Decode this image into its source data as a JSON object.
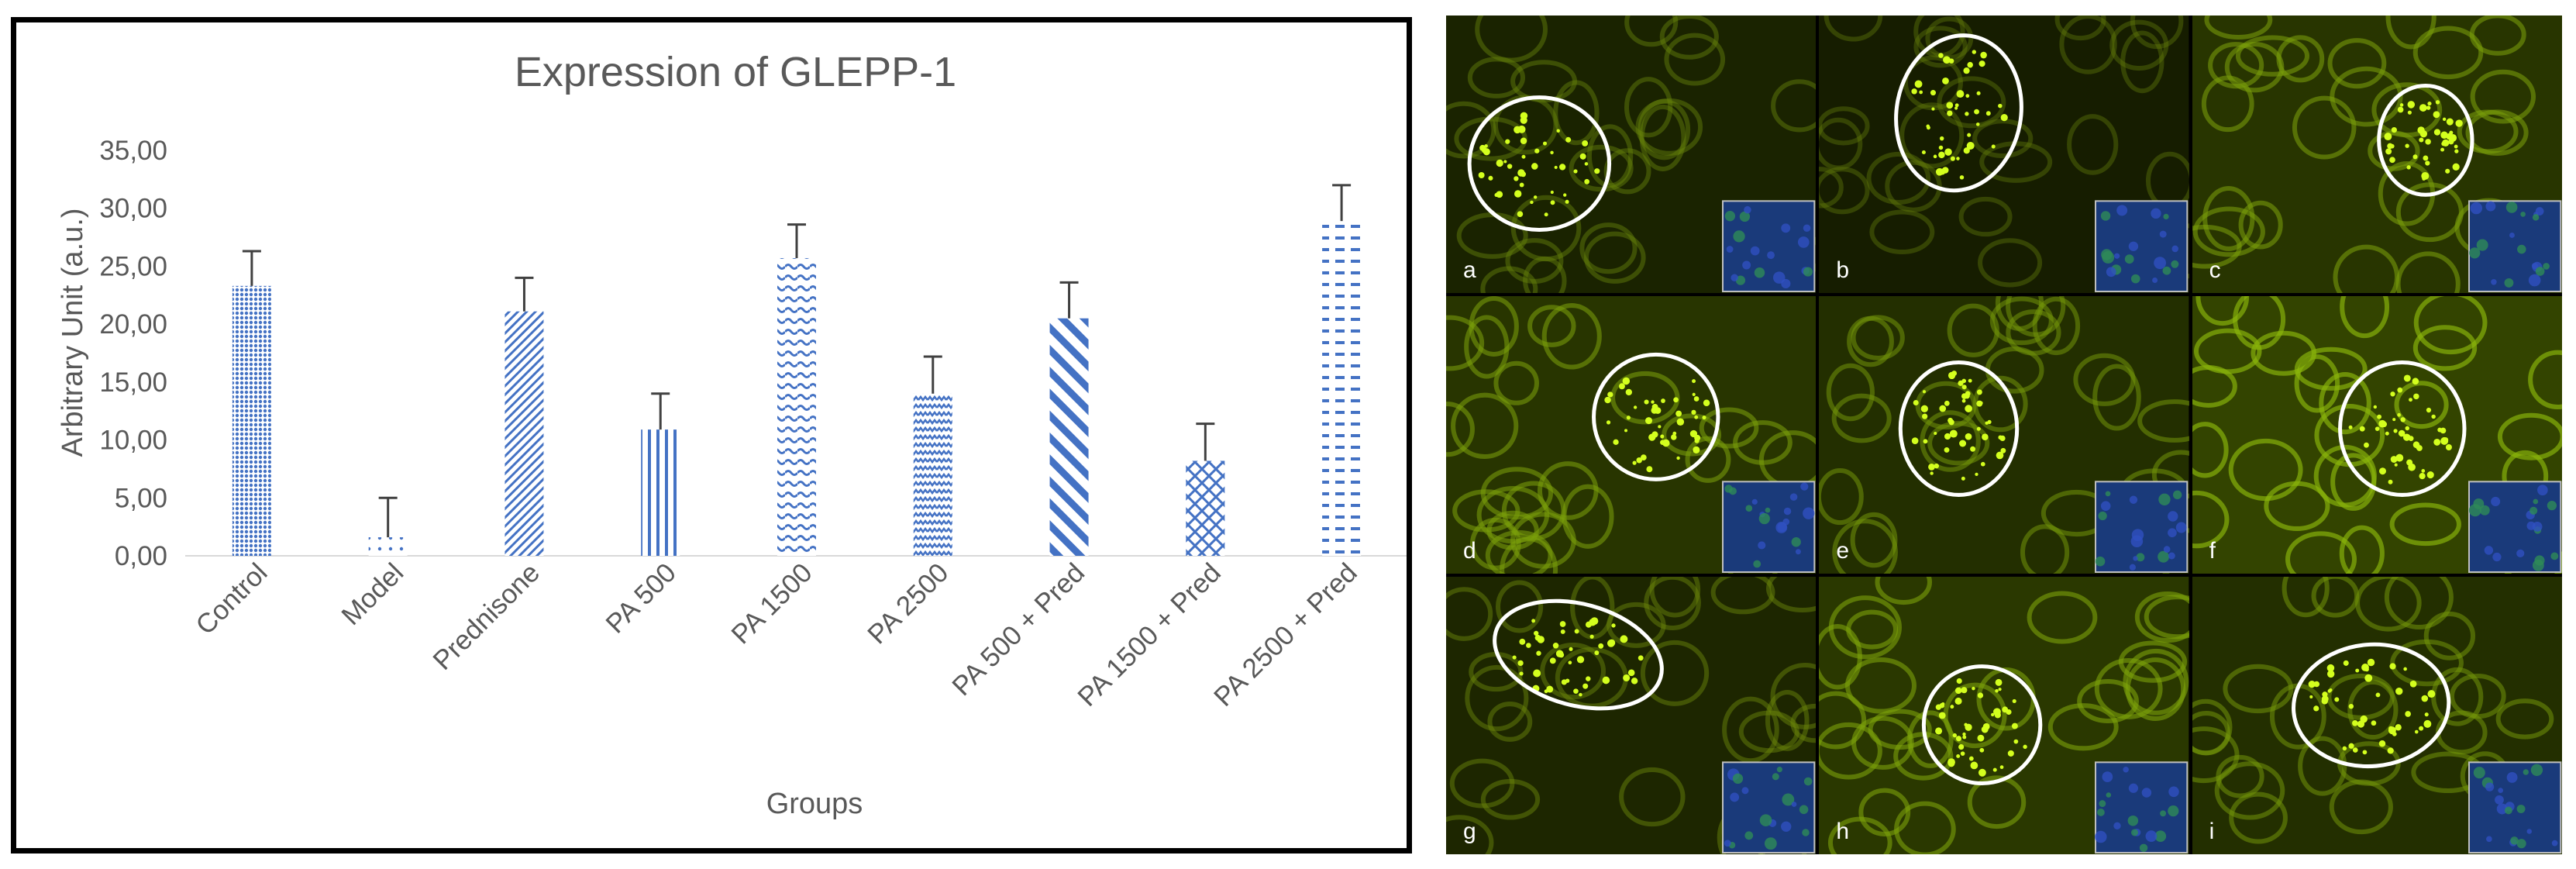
{
  "chart_data": {
    "type": "bar",
    "title": "Expression of GLEPP-1",
    "xlabel": "Groups",
    "ylabel": "Arbitrary Unit (a.u.)",
    "ylim": [
      0,
      35
    ],
    "yticks": [
      "0,00",
      "5,00",
      "10,00",
      "15,00",
      "20,00",
      "25,00",
      "30,00",
      "35,00"
    ],
    "grid": false,
    "categories": [
      "Control",
      "Model",
      "Prednisone",
      "PA 500",
      "PA 1500",
      "PA 2500",
      "PA 500 + Pred",
      "PA 1500 + Pred",
      "PA 2500 + Pred"
    ],
    "values": [
      23.3,
      1.6,
      21.1,
      10.9,
      25.7,
      14.0,
      20.5,
      8.2,
      28.9
    ],
    "errors": [
      3.0,
      3.4,
      2.9,
      3.1,
      2.9,
      3.2,
      3.1,
      3.2,
      3.1
    ],
    "patterns": [
      "dense-dots",
      "sparse-dots",
      "diagonal-hatch",
      "vertical-lines",
      "waves",
      "zigzag",
      "wide-diagonal",
      "crosshatch",
      "dashes"
    ],
    "bar_color": "#4472c4",
    "error_color": "#404040"
  },
  "micrographs": {
    "labels": [
      "a",
      "b",
      "c",
      "d",
      "e",
      "f",
      "g",
      "h",
      "i"
    ]
  }
}
